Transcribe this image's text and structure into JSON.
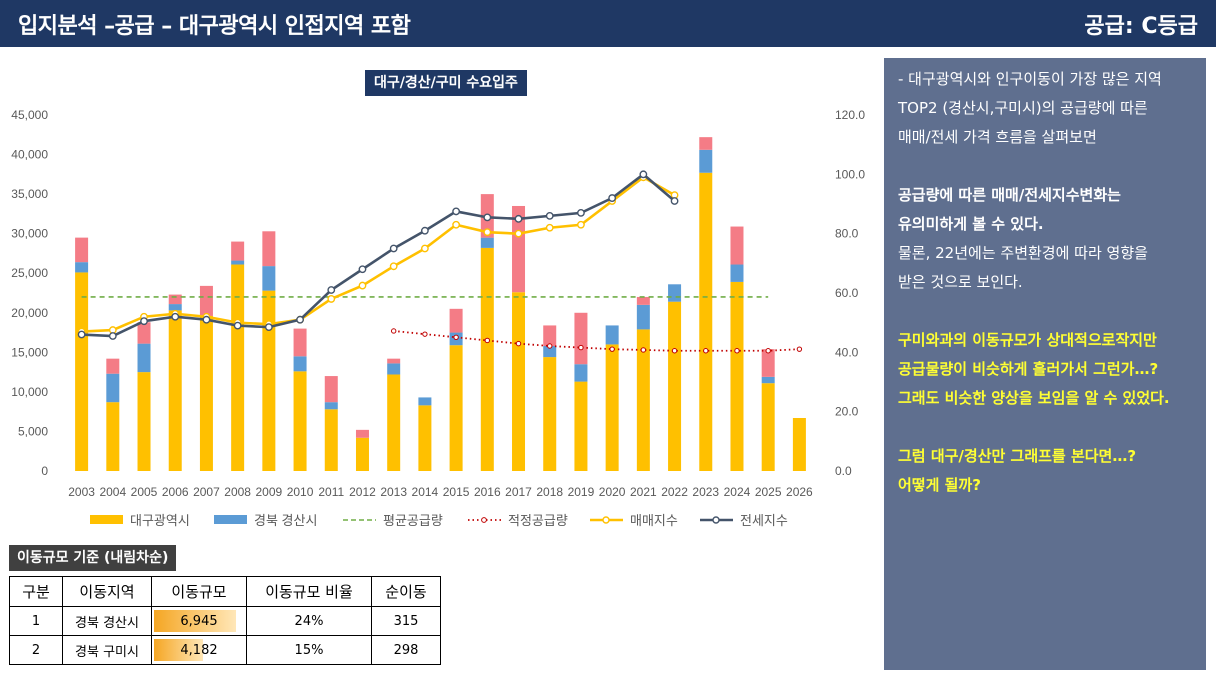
{
  "header": {
    "title": "입지분석 –공급 – 대구광역시 인접지역 포함",
    "grade": "공급: C등급"
  },
  "colors": {
    "navy": "#1f3864",
    "daegu": "#ffc000",
    "gyeongsan": "#5b9bd5",
    "gumi": "#f47c86",
    "avg_supply": "#70ad47",
    "proper_supply": "#c00000",
    "sale_index": "#ffc000",
    "jeonse_index": "#44546a",
    "panel_bg": "#5f6f8f",
    "highlight_text": "#ffff33"
  },
  "chart_data": {
    "type": "bar",
    "title": "대구/경산/구미 수요입주",
    "stacked": true,
    "categories": [
      "2003",
      "2004",
      "2005",
      "2006",
      "2007",
      "2008",
      "2009",
      "2010",
      "2011",
      "2012",
      "2013",
      "2014",
      "2015",
      "2016",
      "2017",
      "2018",
      "2019",
      "2020",
      "2021",
      "2022",
      "2023",
      "2024",
      "2025",
      "2026"
    ],
    "y_left": {
      "min": 0,
      "max": 45000,
      "ticks": [
        "0",
        "5,000",
        "10,000",
        "15,000",
        "20,000",
        "25,000",
        "30,000",
        "35,000",
        "40,000",
        "45,000"
      ]
    },
    "y_right": {
      "min": 0,
      "max": 120,
      "ticks": [
        "0.0",
        "20.0",
        "40.0",
        "60.0",
        "80.0",
        "100.0",
        "120.0"
      ]
    },
    "grid": false,
    "legend_position": "bottom",
    "series": [
      {
        "name": "대구광역시",
        "kind": "bar",
        "axis": "left",
        "values": [
          25100,
          8700,
          12500,
          20300,
          19600,
          26100,
          22800,
          12600,
          7800,
          4200,
          12200,
          8300,
          15900,
          28200,
          22600,
          14400,
          11300,
          16000,
          17900,
          21400,
          37700,
          23900,
          11100,
          6700
        ]
      },
      {
        "name": "경북 경산시",
        "kind": "bar",
        "axis": "left",
        "values": [
          1300,
          3600,
          3600,
          800,
          0,
          500,
          3100,
          1900,
          900,
          0,
          1400,
          1000,
          1600,
          1300,
          0,
          1400,
          2200,
          2400,
          3100,
          2200,
          2900,
          2200,
          800,
          0
        ]
      },
      {
        "name": "경북 구미시",
        "kind": "bar",
        "axis": "left",
        "legend": false,
        "values": [
          3100,
          1900,
          2700,
          1200,
          3800,
          2400,
          4400,
          3500,
          3300,
          1000,
          600,
          0,
          3000,
          5500,
          10900,
          2600,
          6500,
          0,
          1000,
          0,
          1600,
          4800,
          3500,
          0
        ]
      },
      {
        "name": "평균공급량",
        "kind": "dashed",
        "axis": "left",
        "x_range": [
          "2003",
          "2025"
        ],
        "value": 22000
      },
      {
        "name": "적정공급량",
        "kind": "dotted",
        "axis": "left",
        "x": [
          "2013",
          "2014",
          "2015",
          "2016",
          "2017",
          "2018",
          "2019",
          "2020",
          "2021",
          "2022",
          "2023",
          "2024",
          "2025",
          "2026"
        ],
        "values": [
          17700,
          17300,
          16900,
          16500,
          16100,
          15800,
          15600,
          15400,
          15300,
          15200,
          15200,
          15200,
          15200,
          15400
        ]
      },
      {
        "name": "매매지수",
        "kind": "line",
        "axis": "right",
        "x": [
          "2003",
          "2004",
          "2005",
          "2006",
          "2007",
          "2008",
          "2009",
          "2010",
          "2011",
          "2012",
          "2013",
          "2014",
          "2015",
          "2016",
          "2017",
          "2018",
          "2019",
          "2020",
          "2021",
          "2022"
        ],
        "values": [
          47,
          47.5,
          52,
          53,
          52,
          50,
          49.5,
          51,
          58,
          62.5,
          69,
          75,
          83,
          80.5,
          80,
          82,
          83,
          91,
          99,
          93
        ]
      },
      {
        "name": "전세지수",
        "kind": "line",
        "axis": "right",
        "x": [
          "2003",
          "2004",
          "2005",
          "2006",
          "2007",
          "2008",
          "2009",
          "2010",
          "2011",
          "2012",
          "2013",
          "2014",
          "2015",
          "2016",
          "2017",
          "2018",
          "2019",
          "2020",
          "2021",
          "2022"
        ],
        "values": [
          46,
          45.5,
          50.5,
          52,
          51,
          49,
          48.5,
          51,
          61,
          68,
          75,
          81,
          87.5,
          85.5,
          85,
          86,
          87,
          92,
          100,
          91
        ]
      }
    ]
  },
  "panel": {
    "intro": [
      "- 대구광역시와  인구이동이 가장 많은 지역",
      "TOP2 (경산시,구미시)의 공급량에 따른",
      "매매/전세 가격 흐름을 살펴보면"
    ],
    "bold": [
      "공급량에 따른 매매/전세지수변화는",
      "유의미하게 볼 수 있다."
    ],
    "note": [
      "물론, 22년에는 주변환경에 따라 영향을",
      "받은 것으로 보인다."
    ],
    "highlight1": [
      " 구미와과의 이동규모가 상대적으로작지만",
      "공급물량이 비슷하게 흘러가서 그런가…?",
      "그래도 비슷한 양상을 보임을 알 수 있었다."
    ],
    "highlight2": [
      " 그럼 대구/경산만 그래프를 본다면…?",
      "어떻게 될까?"
    ]
  },
  "table": {
    "title": "이동규모 기준 (내림차순)",
    "headers": [
      "구분",
      "이동지역",
      "이동규모",
      "이동규모 비율",
      "순이동"
    ],
    "rows": [
      {
        "rank": "1",
        "region": "경북 경산시",
        "size": "6,945",
        "size_value": 6945,
        "ratio": "24%",
        "net": "315"
      },
      {
        "rank": "2",
        "region": "경북 구미시",
        "size": "4,182",
        "size_value": 4182,
        "ratio": "15%",
        "net": "298"
      }
    ]
  }
}
